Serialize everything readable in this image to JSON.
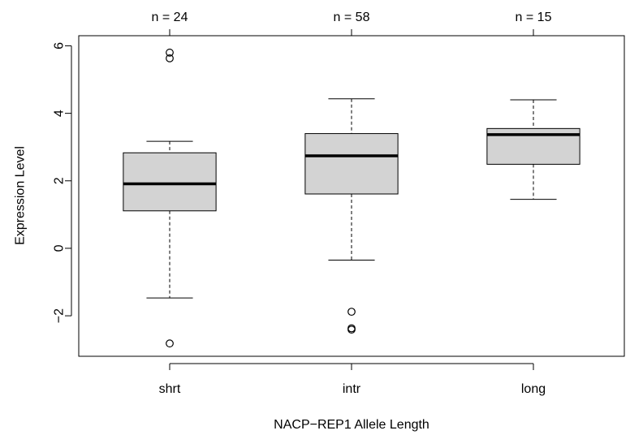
{
  "chart_data": {
    "type": "boxplot",
    "title": "",
    "xlabel": "NACP−REP1 Allele Length",
    "ylabel": "Expression Level",
    "ylim": [
      -3.2,
      6.3
    ],
    "yticks": [
      -2,
      0,
      2,
      4,
      6
    ],
    "ytick_labels": [
      "−2",
      "0",
      "2",
      "4",
      "6"
    ],
    "grid": false,
    "box_fill": "#d3d3d3",
    "groups": [
      {
        "label": "shrt",
        "count_label": "n =  24",
        "whisker_low": -1.47,
        "q1": 1.11,
        "median": 1.91,
        "q3": 2.83,
        "whisker_high": 3.17,
        "outliers": [
          5.8,
          5.63,
          -2.82
        ]
      },
      {
        "label": "intr",
        "count_label": "n =  58",
        "whisker_low": -0.35,
        "q1": 1.61,
        "median": 2.74,
        "q3": 3.4,
        "whisker_high": 4.43,
        "outliers": [
          -1.88,
          -2.37,
          -2.41
        ]
      },
      {
        "label": "long",
        "count_label": "n =  15",
        "whisker_low": 1.45,
        "q1": 2.49,
        "median": 3.37,
        "q3": 3.55,
        "whisker_high": 4.4,
        "outliers": []
      }
    ]
  }
}
